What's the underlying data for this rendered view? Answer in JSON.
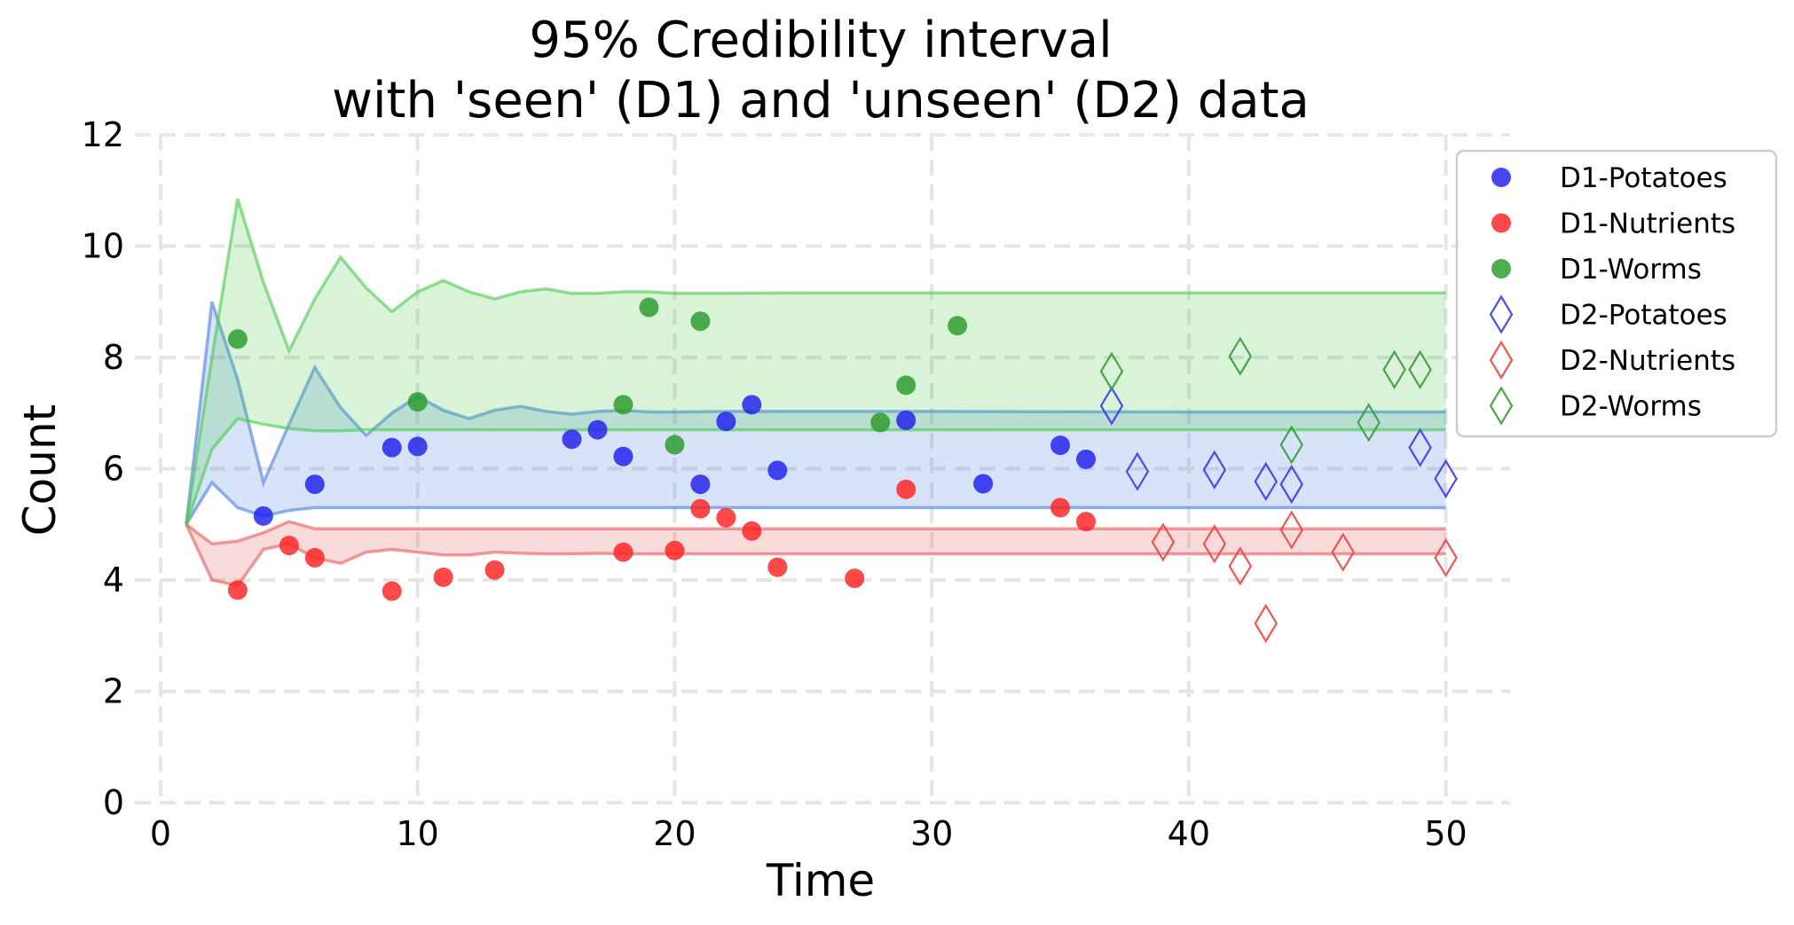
{
  "chart_data": {
    "type": "scatter",
    "title_lines": [
      "95% Credibility interval",
      "with 'seen' (D1) and 'unseen' (D2) data"
    ],
    "xlabel": "Time",
    "ylabel": "Count",
    "xlim": [
      -1,
      52.5
    ],
    "ylim": [
      0,
      12
    ],
    "xticks": [
      0,
      10,
      20,
      30,
      40,
      50
    ],
    "yticks": [
      0,
      2,
      4,
      6,
      8,
      10,
      12
    ],
    "grid": true,
    "legend_position": "right",
    "bands": [
      {
        "color": "#4a7fe0",
        "x": [
          1,
          2,
          3,
          4,
          5,
          6,
          7,
          8,
          9,
          10,
          11,
          12,
          13,
          14,
          15,
          16,
          17,
          18,
          19,
          20,
          22,
          25,
          30,
          40,
          50
        ],
        "upper": [
          5.0,
          9.0,
          7.6,
          5.75,
          6.8,
          7.82,
          7.1,
          6.6,
          7.0,
          7.3,
          7.05,
          6.9,
          7.05,
          7.12,
          7.03,
          6.98,
          7.03,
          7.05,
          7.02,
          7.02,
          7.03,
          7.03,
          7.03,
          7.02,
          7.02
        ],
        "lower": [
          5.0,
          5.75,
          5.3,
          5.15,
          5.25,
          5.3,
          5.3,
          5.3,
          5.3,
          5.3,
          5.3,
          5.3,
          5.3,
          5.3,
          5.3,
          5.3,
          5.3,
          5.3,
          5.3,
          5.3,
          5.3,
          5.3,
          5.3,
          5.3,
          5.3
        ]
      },
      {
        "color": "#e85a5a",
        "x": [
          1,
          2,
          3,
          4,
          5,
          6,
          7,
          8,
          9,
          10,
          11,
          12,
          13,
          14,
          15,
          16,
          17,
          18,
          19,
          20,
          22,
          25,
          30,
          40,
          50
        ],
        "upper": [
          5.0,
          4.65,
          4.7,
          4.85,
          5.05,
          4.92,
          4.92,
          4.92,
          4.92,
          4.92,
          4.92,
          4.92,
          4.92,
          4.92,
          4.92,
          4.92,
          4.92,
          4.92,
          4.92,
          4.92,
          4.92,
          4.92,
          4.92,
          4.92,
          4.92
        ],
        "lower": [
          5.0,
          4.0,
          3.9,
          4.55,
          4.65,
          4.4,
          4.3,
          4.5,
          4.55,
          4.5,
          4.45,
          4.45,
          4.5,
          4.48,
          4.47,
          4.47,
          4.48,
          4.47,
          4.47,
          4.47,
          4.47,
          4.47,
          4.47,
          4.47,
          4.47
        ]
      },
      {
        "color": "#4cc94c",
        "x": [
          1,
          2,
          3,
          4,
          5,
          6,
          7,
          8,
          9,
          10,
          11,
          12,
          13,
          14,
          15,
          16,
          17,
          18,
          19,
          20,
          22,
          25,
          30,
          40,
          50
        ],
        "upper": [
          5.0,
          8.0,
          10.85,
          9.35,
          8.12,
          9.05,
          9.8,
          9.25,
          8.82,
          9.18,
          9.38,
          9.18,
          9.05,
          9.18,
          9.23,
          9.15,
          9.15,
          9.18,
          9.18,
          9.15,
          9.15,
          9.16,
          9.16,
          9.16,
          9.16
        ],
        "lower": [
          5.0,
          6.35,
          6.9,
          6.8,
          6.72,
          6.68,
          6.68,
          6.7,
          6.7,
          6.7,
          6.7,
          6.7,
          6.7,
          6.7,
          6.7,
          6.7,
          6.7,
          6.7,
          6.7,
          6.7,
          6.7,
          6.7,
          6.7,
          6.7,
          6.7
        ]
      }
    ],
    "series": [
      {
        "name": "D1-Potatoes",
        "marker": "circle",
        "color": "#1f1fee",
        "x": [
          4,
          6,
          9,
          10,
          16,
          17,
          18,
          21,
          22,
          23,
          24,
          29,
          32,
          35,
          36
        ],
        "y": [
          5.15,
          5.72,
          6.38,
          6.4,
          6.53,
          6.7,
          6.22,
          5.72,
          6.85,
          7.15,
          5.97,
          6.87,
          5.73,
          6.42,
          6.17
        ]
      },
      {
        "name": "D1-Nutrients",
        "marker": "circle",
        "color": "#ff2020",
        "x": [
          3,
          5,
          6,
          9,
          11,
          13,
          18,
          20,
          21,
          22,
          23,
          24,
          27,
          29,
          35,
          36
        ],
        "y": [
          3.82,
          4.62,
          4.4,
          3.8,
          4.05,
          4.18,
          4.5,
          4.53,
          5.28,
          5.12,
          4.88,
          4.23,
          4.03,
          5.63,
          5.3,
          5.05
        ]
      },
      {
        "name": "D1-Worms",
        "marker": "circle",
        "color": "#2a9a2a",
        "x": [
          3,
          10,
          18,
          19,
          20,
          21,
          28,
          29,
          31
        ],
        "y": [
          8.33,
          7.2,
          7.15,
          8.9,
          6.43,
          8.65,
          6.83,
          7.5,
          8.57
        ]
      },
      {
        "name": "D2-Potatoes",
        "marker": "diamond",
        "color": "#3a3aee",
        "x": [
          37,
          38,
          41,
          43,
          44,
          49,
          50
        ],
        "y": [
          7.13,
          5.95,
          5.98,
          5.77,
          5.72,
          6.38,
          5.82
        ]
      },
      {
        "name": "D2-Nutrients",
        "marker": "diamond",
        "color": "#ee4444",
        "x": [
          39,
          41,
          42,
          43,
          44,
          46,
          50
        ],
        "y": [
          4.68,
          4.65,
          4.25,
          3.22,
          4.9,
          4.5,
          4.4
        ]
      },
      {
        "name": "D2-Worms",
        "marker": "diamond",
        "color": "#3a9a3a",
        "x": [
          37,
          42,
          44,
          47,
          48,
          49
        ],
        "y": [
          7.75,
          8.02,
          6.43,
          6.83,
          7.78,
          7.78
        ]
      }
    ]
  }
}
